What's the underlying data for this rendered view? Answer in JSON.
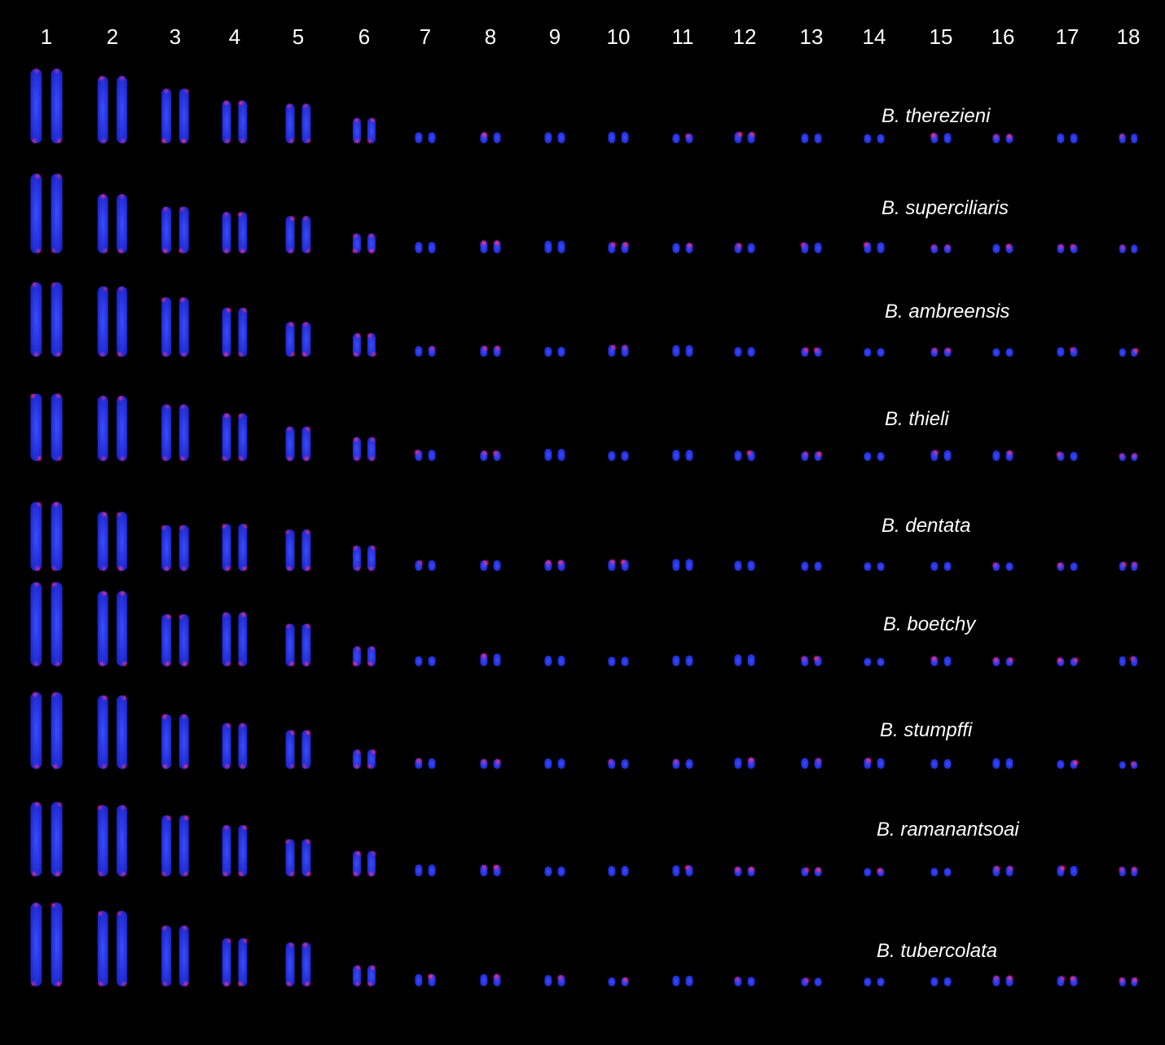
{
  "figure": {
    "chromosome_numbers": [
      "1",
      "2",
      "3",
      "4",
      "5",
      "6",
      "7",
      "8",
      "9",
      "10",
      "11",
      "12",
      "13",
      "14",
      "15",
      "16",
      "17",
      "18"
    ],
    "species": [
      "B. therezieni",
      "B. superciliaris",
      "B. ambreensis",
      "B. thieli",
      "B. dentata",
      "B. boetchy",
      "B. stumpffi",
      "B. ramanantsoai",
      "B. tubercolata"
    ],
    "colors": {
      "background": "#000000",
      "chromosome": "#2a3bff",
      "signal": "#ff2a8c",
      "text": "#ffffff"
    }
  }
}
